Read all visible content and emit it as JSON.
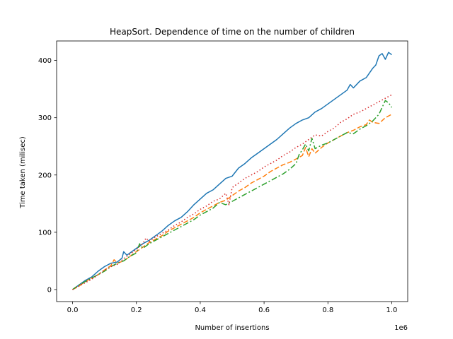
{
  "chart_data": {
    "type": "line",
    "title": "HeapSort. Dependence of time on the number of children",
    "xlabel": "Number of insertions",
    "ylabel": "Time taken (milisec)",
    "x_offset_label": "1e6",
    "xlim": [
      -0.05,
      1.05
    ],
    "ylim": [
      -21,
      434
    ],
    "xticks": [
      0.0,
      0.2,
      0.4,
      0.6,
      0.8,
      1.0
    ],
    "xtick_labels": [
      "0.0",
      "0.2",
      "0.4",
      "0.6",
      "0.8",
      "1.0"
    ],
    "yticks": [
      0,
      100,
      200,
      300,
      400
    ],
    "ytick_labels": [
      "0",
      "100",
      "200",
      "300",
      "400"
    ],
    "grid": false,
    "series": [
      {
        "color": "#1f77b4",
        "dash": "",
        "x": [
          0.0,
          0.02,
          0.04,
          0.06,
          0.08,
          0.1,
          0.12,
          0.14,
          0.155,
          0.16,
          0.17,
          0.18,
          0.2,
          0.22,
          0.24,
          0.26,
          0.28,
          0.3,
          0.32,
          0.34,
          0.36,
          0.38,
          0.4,
          0.42,
          0.44,
          0.46,
          0.48,
          0.5,
          0.52,
          0.54,
          0.56,
          0.58,
          0.6,
          0.62,
          0.64,
          0.66,
          0.68,
          0.7,
          0.72,
          0.74,
          0.76,
          0.78,
          0.8,
          0.82,
          0.84,
          0.86,
          0.87,
          0.88,
          0.9,
          0.92,
          0.93,
          0.94,
          0.95,
          0.96,
          0.97,
          0.98,
          0.99,
          1.0
        ],
        "y": [
          0,
          8,
          16,
          22,
          32,
          40,
          46,
          48,
          55,
          66,
          60,
          64,
          72,
          80,
          86,
          94,
          102,
          112,
          120,
          126,
          136,
          148,
          158,
          168,
          174,
          184,
          194,
          198,
          212,
          220,
          230,
          238,
          246,
          254,
          262,
          272,
          282,
          290,
          296,
          300,
          310,
          316,
          324,
          332,
          340,
          348,
          358,
          352,
          364,
          370,
          378,
          386,
          392,
          408,
          412,
          402,
          414,
          410
        ]
      },
      {
        "color": "#ff7f0e",
        "dash": "7,3",
        "x": [
          0.0,
          0.02,
          0.04,
          0.06,
          0.08,
          0.1,
          0.12,
          0.13,
          0.14,
          0.16,
          0.18,
          0.2,
          0.22,
          0.24,
          0.26,
          0.28,
          0.3,
          0.32,
          0.34,
          0.36,
          0.38,
          0.4,
          0.42,
          0.44,
          0.46,
          0.48,
          0.5,
          0.52,
          0.54,
          0.56,
          0.58,
          0.6,
          0.62,
          0.64,
          0.66,
          0.68,
          0.7,
          0.72,
          0.73,
          0.74,
          0.75,
          0.76,
          0.78,
          0.8,
          0.82,
          0.84,
          0.86,
          0.88,
          0.9,
          0.92,
          0.93,
          0.94,
          0.96,
          0.98,
          1.0
        ],
        "y": [
          0,
          6,
          14,
          20,
          26,
          34,
          42,
          52,
          46,
          50,
          58,
          66,
          74,
          82,
          88,
          94,
          102,
          108,
          114,
          120,
          126,
          134,
          140,
          146,
          152,
          156,
          164,
          172,
          178,
          186,
          192,
          198,
          206,
          212,
          218,
          222,
          228,
          234,
          248,
          232,
          246,
          238,
          248,
          256,
          262,
          268,
          274,
          278,
          284,
          288,
          296,
          292,
          290,
          300,
          306
        ]
      },
      {
        "color": "#2ca02c",
        "dash": "8,3,2,3",
        "x": [
          0.0,
          0.02,
          0.04,
          0.06,
          0.08,
          0.1,
          0.12,
          0.14,
          0.16,
          0.18,
          0.2,
          0.21,
          0.22,
          0.24,
          0.26,
          0.28,
          0.3,
          0.32,
          0.34,
          0.36,
          0.38,
          0.4,
          0.42,
          0.44,
          0.46,
          0.48,
          0.5,
          0.52,
          0.54,
          0.56,
          0.58,
          0.6,
          0.62,
          0.64,
          0.66,
          0.68,
          0.7,
          0.71,
          0.72,
          0.73,
          0.74,
          0.75,
          0.76,
          0.78,
          0.8,
          0.82,
          0.84,
          0.86,
          0.88,
          0.9,
          0.92,
          0.94,
          0.96,
          0.97,
          0.98,
          0.99,
          1.0
        ],
        "y": [
          0,
          8,
          14,
          20,
          26,
          32,
          40,
          46,
          50,
          58,
          64,
          80,
          72,
          80,
          86,
          92,
          98,
          104,
          110,
          116,
          122,
          130,
          136,
          142,
          152,
          148,
          154,
          160,
          166,
          172,
          178,
          184,
          190,
          196,
          202,
          210,
          220,
          236,
          244,
          254,
          242,
          264,
          246,
          252,
          256,
          262,
          268,
          274,
          272,
          280,
          286,
          294,
          306,
          318,
          330,
          326,
          318
        ]
      },
      {
        "color": "#d62728",
        "dash": "1.5,3",
        "x": [
          0.0,
          0.02,
          0.04,
          0.06,
          0.08,
          0.1,
          0.12,
          0.14,
          0.16,
          0.18,
          0.2,
          0.22,
          0.23,
          0.24,
          0.26,
          0.28,
          0.3,
          0.32,
          0.34,
          0.36,
          0.38,
          0.4,
          0.42,
          0.44,
          0.46,
          0.48,
          0.49,
          0.5,
          0.52,
          0.54,
          0.56,
          0.58,
          0.6,
          0.62,
          0.64,
          0.66,
          0.68,
          0.7,
          0.72,
          0.74,
          0.76,
          0.78,
          0.8,
          0.82,
          0.84,
          0.86,
          0.88,
          0.9,
          0.92,
          0.94,
          0.96,
          0.98,
          1.0
        ],
        "y": [
          0,
          6,
          12,
          18,
          26,
          34,
          40,
          44,
          54,
          62,
          70,
          80,
          90,
          84,
          92,
          98,
          104,
          112,
          118,
          126,
          132,
          140,
          146,
          154,
          158,
          168,
          148,
          178,
          186,
          194,
          200,
          206,
          214,
          220,
          226,
          234,
          240,
          248,
          254,
          262,
          270,
          268,
          276,
          282,
          292,
          298,
          306,
          310,
          316,
          322,
          328,
          334,
          340
        ]
      }
    ]
  }
}
